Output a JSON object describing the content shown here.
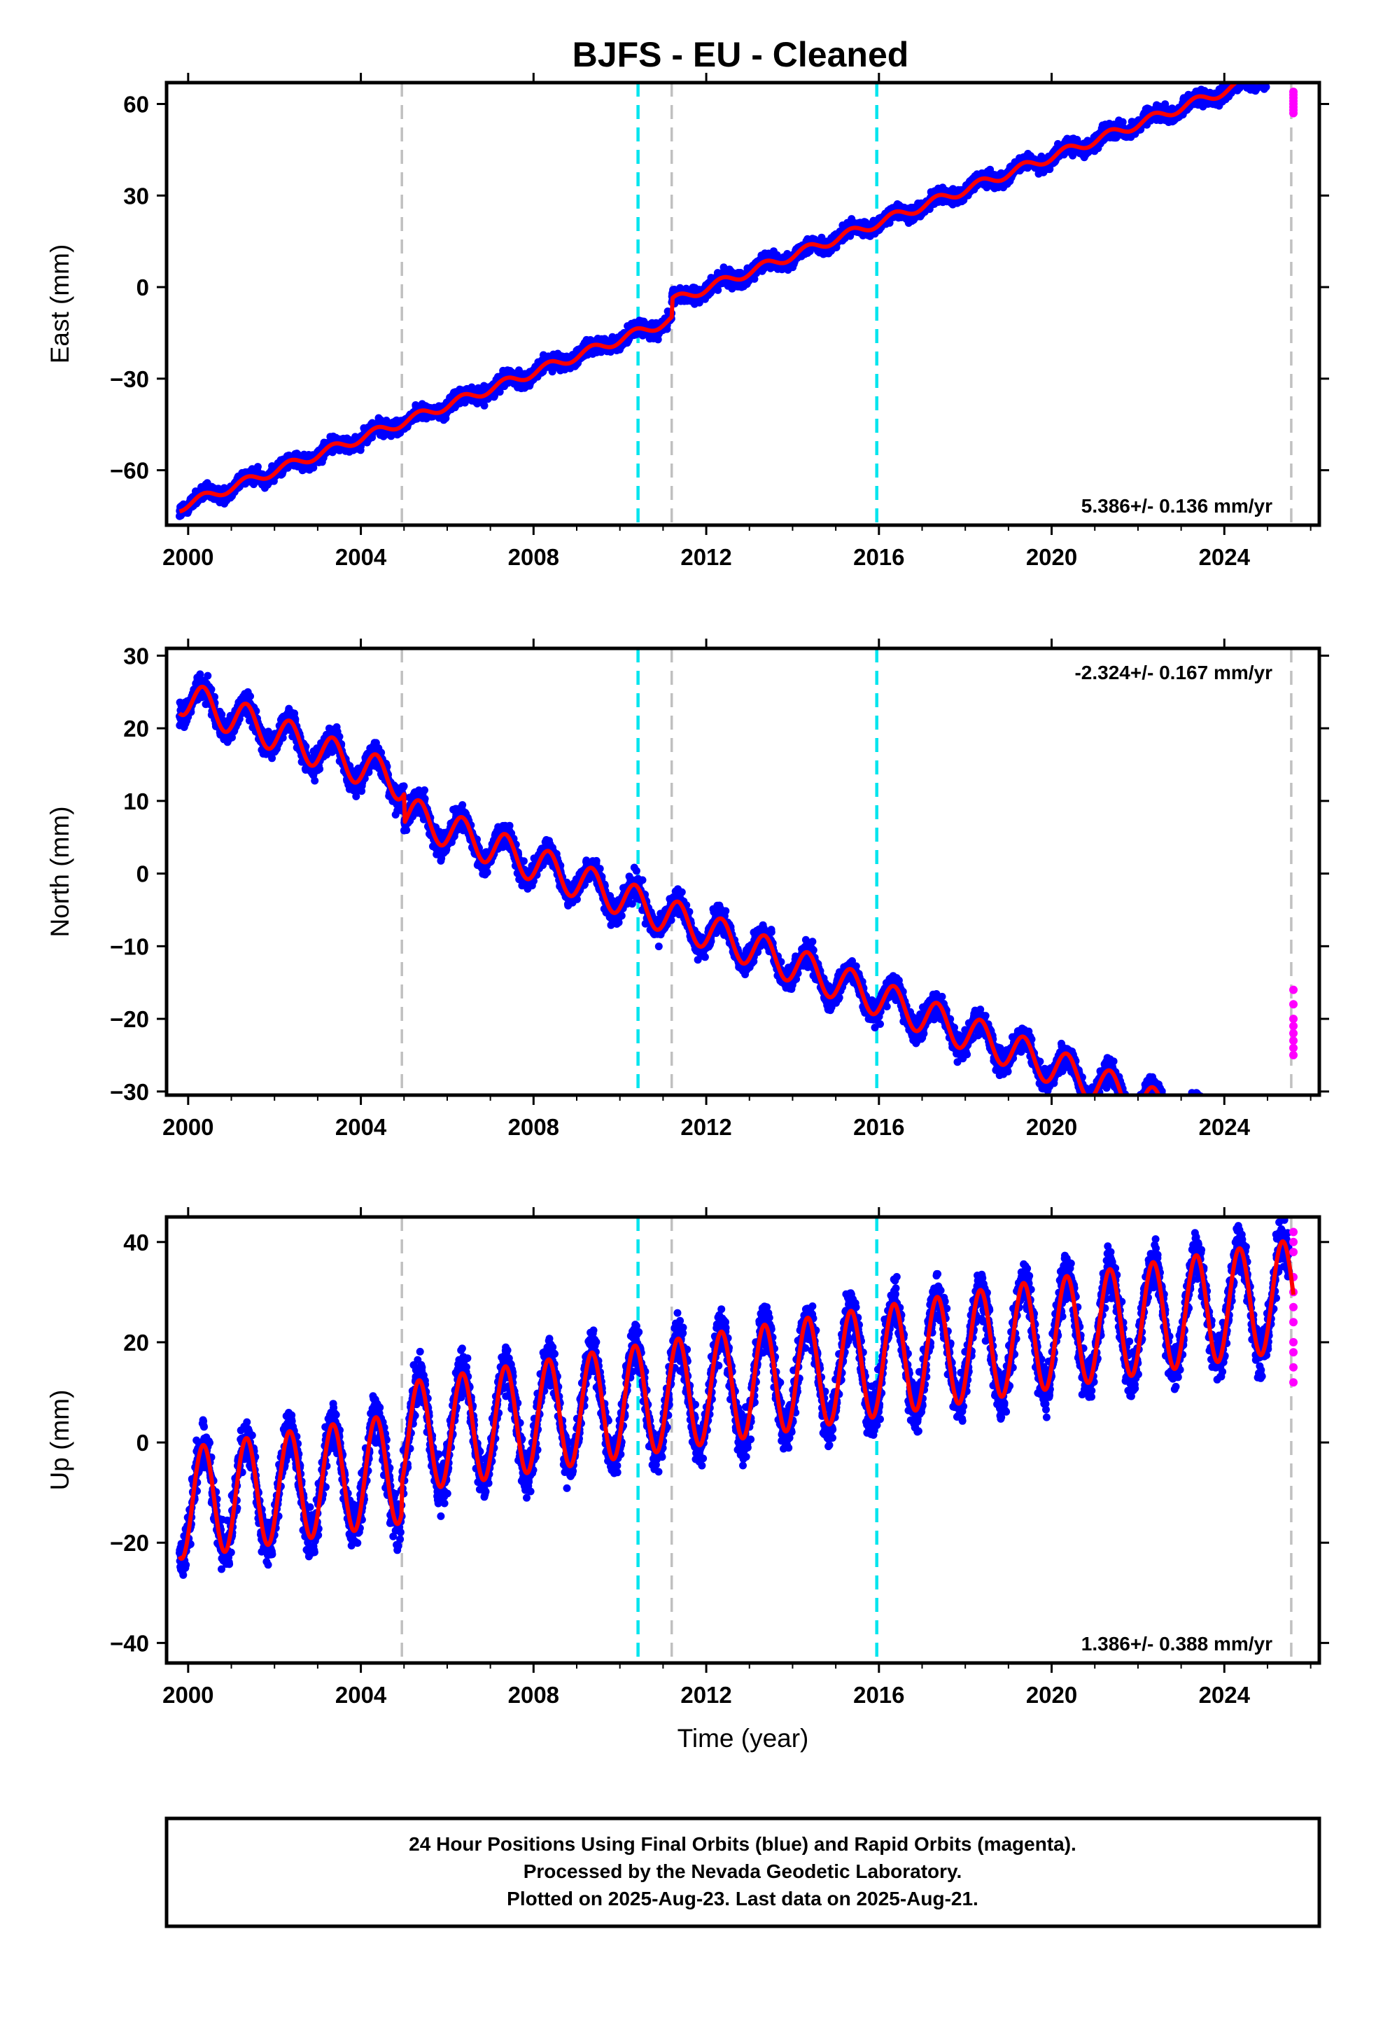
{
  "title": "BJFS  - EU - Cleaned",
  "colors": {
    "final_orbits": "#0000ff",
    "rapid_orbits": "#ff00ff",
    "model": "#ff0000",
    "equipment_change": "#00e5ee",
    "other_event": "#c0c0c0"
  },
  "footer": {
    "line1": "24 Hour Positions Using Final Orbits (blue) and Rapid Orbits (magenta).",
    "line2": "Processed by the Nevada Geodetic Laboratory.",
    "line3": "Plotted on 2025-Aug-23. Last data on 2025-Aug-21."
  },
  "chart_data": [
    {
      "type": "scatter",
      "component": "east",
      "title": "BJFS  - EU - Cleaned",
      "ylabel": "East (mm)",
      "xlabel": "",
      "xlim": [
        1999.5,
        2026.2
      ],
      "ylim": [
        -78,
        67
      ],
      "xticks": [
        2000,
        2004,
        2008,
        2012,
        2016,
        2020,
        2024
      ],
      "yticks": [
        -60,
        -30,
        0,
        30,
        60
      ],
      "grid": false,
      "rate_label": "5.386+/- 0.136 mm/yr",
      "rate_position": "bottom-right",
      "trend": {
        "slope": 5.386,
        "intercept_at_2000": -71
      },
      "steps": [
        {
          "year": 2011.2,
          "offset": 6
        }
      ],
      "seasonal_amplitude": 1.5,
      "scatter": 2.3,
      "vlines": [
        {
          "x": 2004.95,
          "kind": "other_event"
        },
        {
          "x": 2010.42,
          "kind": "equipment_change"
        },
        {
          "x": 2011.2,
          "kind": "other_event"
        },
        {
          "x": 2015.95,
          "kind": "equipment_change"
        },
        {
          "x": 2025.55,
          "kind": "other_event"
        }
      ],
      "rapid_points": [
        59,
        61,
        63,
        60,
        58,
        62,
        64,
        57
      ]
    },
    {
      "type": "scatter",
      "component": "north",
      "title": "",
      "ylabel": "North (mm)",
      "xlabel": "",
      "xlim": [
        1999.5,
        2026.2
      ],
      "ylim": [
        -30.5,
        31
      ],
      "xticks": [
        2000,
        2004,
        2008,
        2012,
        2016,
        2020,
        2024
      ],
      "yticks": [
        -30,
        -20,
        -10,
        0,
        10,
        20,
        30
      ],
      "grid": false,
      "rate_label": "-2.324+/- 0.167 mm/yr",
      "rate_position": "top-right",
      "trend": {
        "slope": -2.324,
        "intercept_at_2000": 24
      },
      "steps": [
        {
          "year": 2005.0,
          "offset": -4
        }
      ],
      "seasonal_amplitude": 2.5,
      "scatter": 1.6,
      "vlines": [
        {
          "x": 2004.95,
          "kind": "other_event"
        },
        {
          "x": 2010.42,
          "kind": "equipment_change"
        },
        {
          "x": 2011.2,
          "kind": "other_event"
        },
        {
          "x": 2015.95,
          "kind": "equipment_change"
        },
        {
          "x": 2025.55,
          "kind": "other_event"
        }
      ],
      "rapid_points": [
        -24,
        -22,
        -20,
        -18,
        -16,
        -23,
        -25,
        -21
      ]
    },
    {
      "type": "scatter",
      "component": "up",
      "title": "",
      "ylabel": "Up (mm)",
      "xlabel": "Time (year)",
      "xlim": [
        1999.5,
        2026.2
      ],
      "ylim": [
        -44,
        45
      ],
      "xticks": [
        2000,
        2004,
        2008,
        2012,
        2016,
        2020,
        2024
      ],
      "yticks": [
        -40,
        -20,
        0,
        20,
        40
      ],
      "grid": false,
      "rate_label": "1.386+/- 0.388 mm/yr",
      "rate_position": "bottom-right",
      "trend": {
        "slope": 1.386,
        "intercept_at_2000": -12
      },
      "steps": [
        {
          "year": 2004.95,
          "offset": 6
        }
      ],
      "seasonal_amplitude": 11,
      "scatter": 4.5,
      "vlines": [
        {
          "x": 2004.95,
          "kind": "other_event"
        },
        {
          "x": 2010.42,
          "kind": "equipment_change"
        },
        {
          "x": 2011.2,
          "kind": "other_event"
        },
        {
          "x": 2015.95,
          "kind": "equipment_change"
        },
        {
          "x": 2025.55,
          "kind": "other_event"
        }
      ],
      "rapid_points": [
        42,
        40,
        38,
        33,
        30,
        27,
        24,
        20,
        18,
        15,
        12
      ]
    }
  ]
}
